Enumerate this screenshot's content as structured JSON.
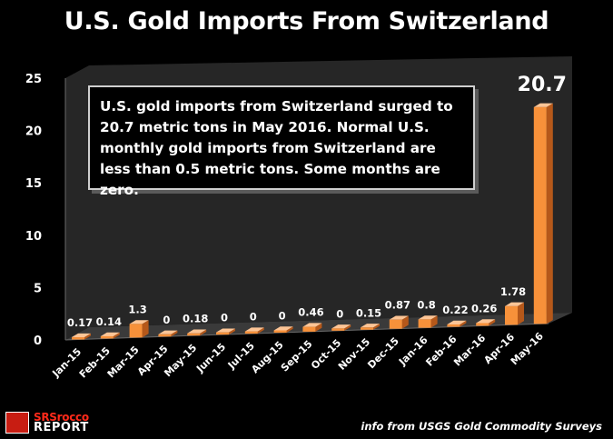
{
  "chart_data": {
    "type": "bar",
    "title": "U.S. Gold Imports From Switzerland",
    "categories": [
      "Jan-15",
      "Feb-15",
      "Mar-15",
      "Apr-15",
      "May-15",
      "Jun-15",
      "Jul-15",
      "Aug-15",
      "Sep-15",
      "Oct-15",
      "Nov-15",
      "Dec-15",
      "Jan-16",
      "Feb-16",
      "Mar-16",
      "Apr-16",
      "May-16"
    ],
    "values": [
      0.17,
      0.14,
      1.3,
      0,
      0.18,
      0,
      0,
      0,
      0.46,
      0,
      0.15,
      0.87,
      0.8,
      0.22,
      0.26,
      1.78,
      20.7
    ],
    "value_labels": [
      "0.17",
      "0.14",
      "1.3",
      "0",
      "0.18",
      "0",
      "0",
      "0",
      "0.46",
      "0",
      "0.15",
      "0.87",
      "0.8",
      "0.22",
      "0.26",
      "1.78",
      "20.7"
    ],
    "ylim": [
      0,
      25
    ],
    "yticks": [
      0,
      5,
      10,
      15,
      20,
      25
    ],
    "xlabel": "",
    "ylabel": "",
    "grid": false,
    "legend": "none",
    "annotation": "U.S. gold imports from Switzerland surged to 20.7 metric tons in May 2016.  Normal U.S. monthly gold imports from Switzerland are less than 0.5 metric tons.  Some months are zero."
  },
  "colors": {
    "background": "#000000",
    "bar_front": "#f7913a",
    "bar_top": "#fdc596",
    "bar_side": "#b5581a",
    "back_wall": "#262626",
    "floor": "#3a3a3a",
    "text": "#ffffff"
  },
  "footer": {
    "logo_line1": "SRSrocco",
    "logo_line2": "REPORT",
    "logo_icon": "srsrocco-logo-icon",
    "source": "info from USGS Gold Commodity Surveys"
  }
}
